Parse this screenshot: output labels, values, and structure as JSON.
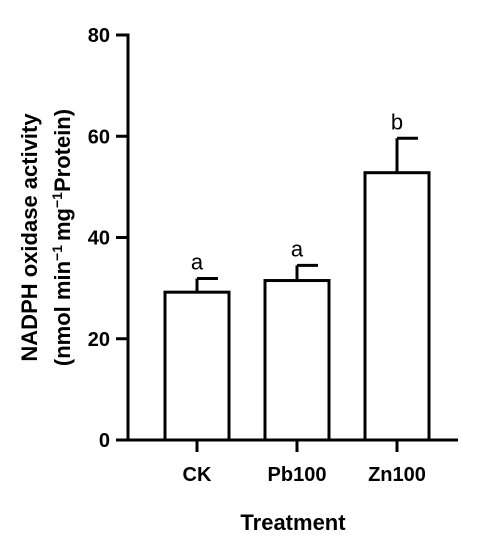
{
  "chart_data": {
    "type": "bar",
    "categories": [
      "CK",
      "Pb100",
      "Zn100"
    ],
    "values": [
      29.2,
      31.5,
      52.8
    ],
    "errors": [
      2.7,
      3.0,
      6.8
    ],
    "significance": [
      "a",
      "a",
      "b"
    ],
    "xlabel": "Treatment",
    "ylabel": {
      "line1": "NADPH oxidase activity",
      "line2_a": "(nmol min",
      "line2_sup1": "−1",
      "line2_b": "mg",
      "line2_sup2": "−1",
      "line2_c": "Protein)"
    },
    "ylim": [
      0,
      80
    ],
    "yticks": [
      0,
      20,
      40,
      60,
      80
    ],
    "grid": false,
    "colors": {
      "bar_fill": "#ffffff",
      "bar_stroke": "#000000"
    }
  }
}
